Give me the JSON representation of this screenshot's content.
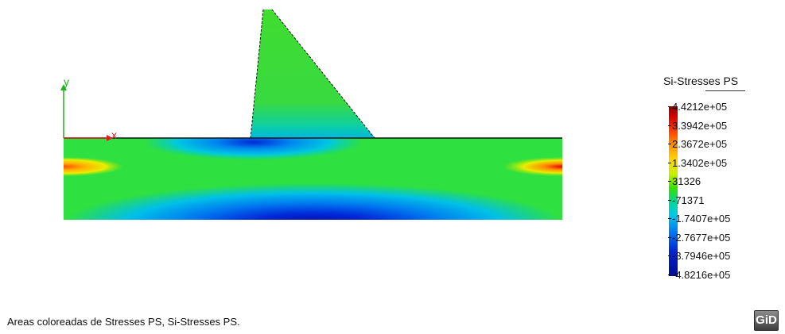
{
  "legend": {
    "title": "Si-Stresses PS",
    "values": [
      "4.4212e+05",
      "3.3942e+05",
      "2.3672e+05",
      "1.3402e+05",
      "31326",
      "-71371",
      "-1.7407e+05",
      "-2.7677e+05",
      "-3.7946e+05",
      "-4.8216e+05"
    ]
  },
  "axes": {
    "x_label": "x",
    "y_label": "y",
    "x_color": "#e02020",
    "y_color": "#20b020"
  },
  "caption": "Areas coloreadas de Stresses PS, Si-Stresses PS.",
  "logo": {
    "text": "GiD"
  },
  "colors": {
    "max": "#8a0000",
    "min": "#000c90",
    "mid": "#38e000"
  }
}
